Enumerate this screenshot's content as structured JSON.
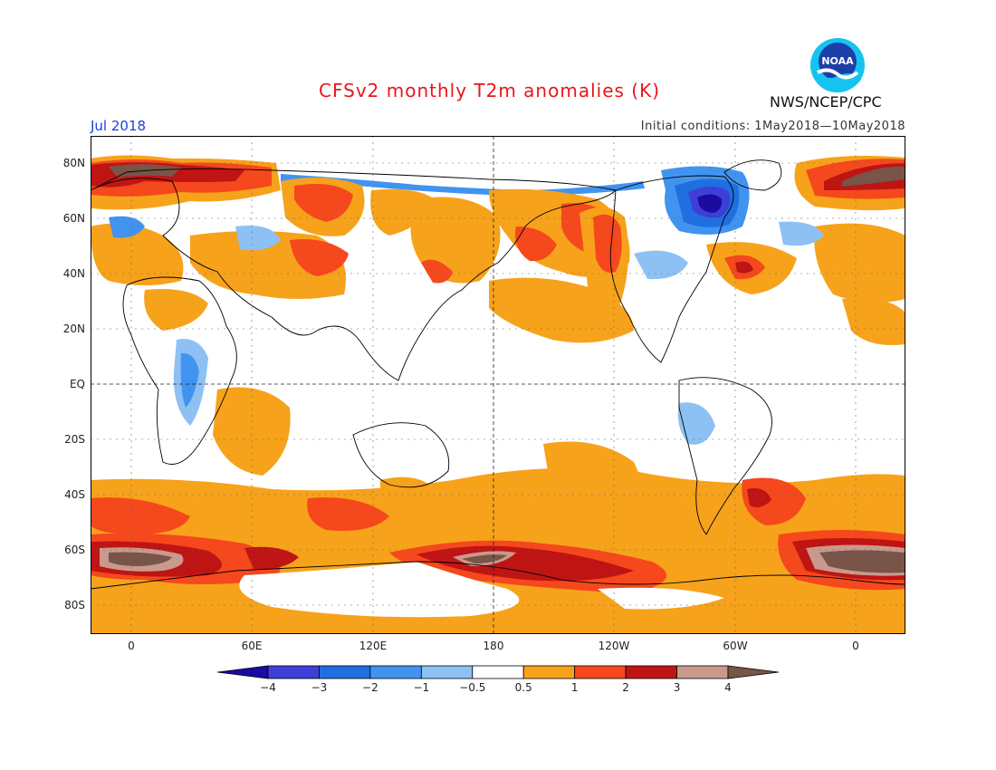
{
  "title": "CFSv2 monthly T2m anomalies (K)",
  "period": "Jul 2018",
  "initial_conditions": "Initial conditions: 1May2018—10May2018",
  "agency": "NWS/NCEP/CPC",
  "logo": {
    "text": "NOAA",
    "icon": "noaa-logo-icon"
  },
  "axes": {
    "lat_labels": [
      "80N",
      "60N",
      "40N",
      "20N",
      "EQ",
      "20S",
      "40S",
      "60S",
      "80S"
    ],
    "lon_labels": [
      "0",
      "60E",
      "120E",
      "180",
      "120W",
      "60W",
      "0"
    ]
  },
  "colorbar": {
    "labels": [
      "-4",
      "-3",
      "-2",
      "-1",
      "-0.5",
      "0.5",
      "1",
      "2",
      "3",
      "4"
    ],
    "colors": [
      "#1a0ca0",
      "#3d3fd6",
      "#1f6fe0",
      "#4193f0",
      "#8dc1f4",
      "#ffffff",
      "#f7a21b",
      "#f5481c",
      "#bf1414",
      "#c99a8c",
      "#795448"
    ]
  },
  "palette": {
    "land_outline": "#000000",
    "title_color": "#e8161b",
    "period_color": "#1d3fe0"
  }
}
